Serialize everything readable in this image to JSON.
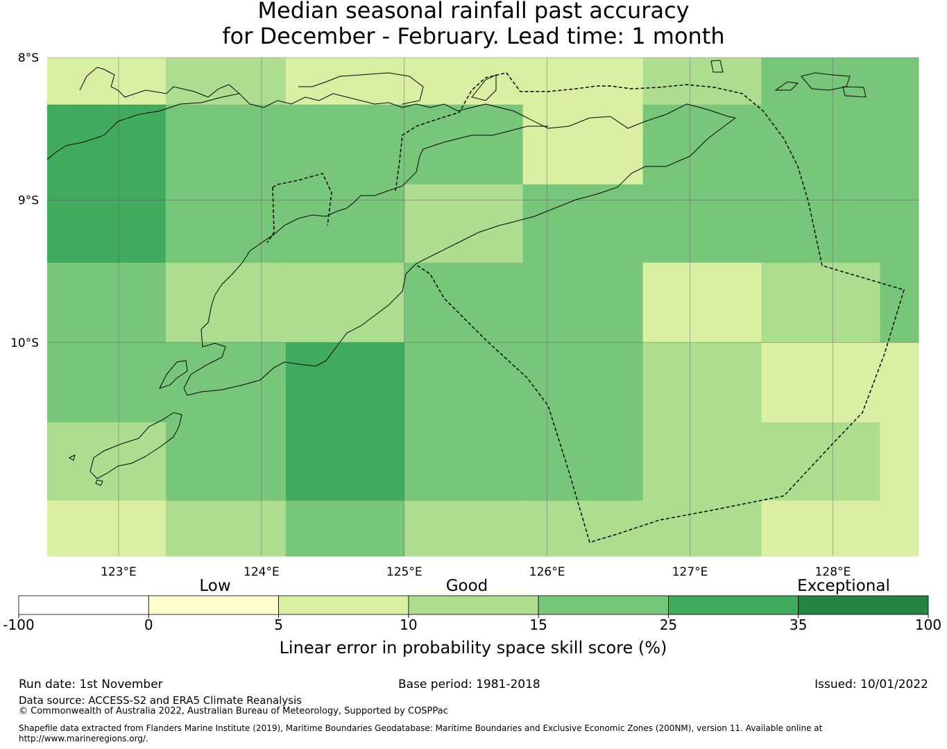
{
  "title": {
    "line1": "Median seasonal rainfall past accuracy",
    "line2": "for December - February. Lead time: 1 month"
  },
  "chart_data": {
    "type": "heatmap",
    "x_ticks": [
      "123°E",
      "124°E",
      "125°E",
      "126°E",
      "127°E",
      "128°E"
    ],
    "x_tick_values": [
      123,
      124,
      125,
      126,
      127,
      128
    ],
    "y_ticks": [
      "8°S",
      "9°S",
      "10°S"
    ],
    "y_tick_values": [
      -8,
      -9,
      -10
    ],
    "xlim": [
      122.5,
      128.6
    ],
    "ylim": [
      -11.5,
      -8.0
    ],
    "lon_edges": [
      122.5,
      123.33,
      124.17,
      125.0,
      125.83,
      126.67,
      127.5,
      128.33,
      128.6
    ],
    "lat_edges": [
      -8.0,
      -8.33,
      -8.89,
      -9.44,
      -10.0,
      -10.56,
      -11.11,
      -11.5
    ],
    "cells": [
      [
        7,
        12,
        7,
        7,
        7,
        12,
        17,
        17
      ],
      [
        30,
        17,
        17,
        17,
        7,
        17,
        17,
        17
      ],
      [
        30,
        17,
        17,
        12,
        17,
        17,
        17,
        17
      ],
      [
        17,
        12,
        12,
        17,
        17,
        7,
        12,
        17
      ],
      [
        17,
        17,
        30,
        17,
        17,
        12,
        7,
        7
      ],
      [
        12,
        17,
        30,
        17,
        17,
        12,
        12,
        7
      ],
      [
        7,
        12,
        17,
        12,
        12,
        12,
        7,
        7
      ]
    ],
    "colorbar": {
      "label": "Linear error in probability space skill score (%)",
      "ticks": [
        "-100",
        "0",
        "5",
        "10",
        "15",
        "25",
        "35",
        "100"
      ],
      "bins": [
        {
          "from": -100,
          "to": 0,
          "color": "#ffffff"
        },
        {
          "from": 0,
          "to": 5,
          "color": "#ffffcc"
        },
        {
          "from": 5,
          "to": 10,
          "color": "#d9f0a3"
        },
        {
          "from": 10,
          "to": 15,
          "color": "#addd8e"
        },
        {
          "from": 15,
          "to": 25,
          "color": "#78c679"
        },
        {
          "from": 25,
          "to": 35,
          "color": "#41ab5d"
        },
        {
          "from": 35,
          "to": 100,
          "color": "#238443"
        }
      ],
      "categories": [
        "Low",
        "Good",
        "Exceptional"
      ]
    }
  },
  "footer": {
    "run_date": "Run date: 1st November",
    "base_period": "Base period: 1981-2018",
    "issued": "Issued: 10/01/2022",
    "data_source": "Data source: ACCESS-S2 and ERA5 Climate Reanalysis",
    "copyright": "© Commonwealth of Australia 2022, Australian Bureau of Meteorology, Supported by COSPPac",
    "shapefile_line1": "Shapefile data extracted from Flanders Marine Institute (2019), Maritime Boundaries Geodatabase: Maritime Boundaries and Exclusive Economic Zones (200NM), version 11. Available online at",
    "shapefile_line2": "http://www.marineregions.org/."
  }
}
